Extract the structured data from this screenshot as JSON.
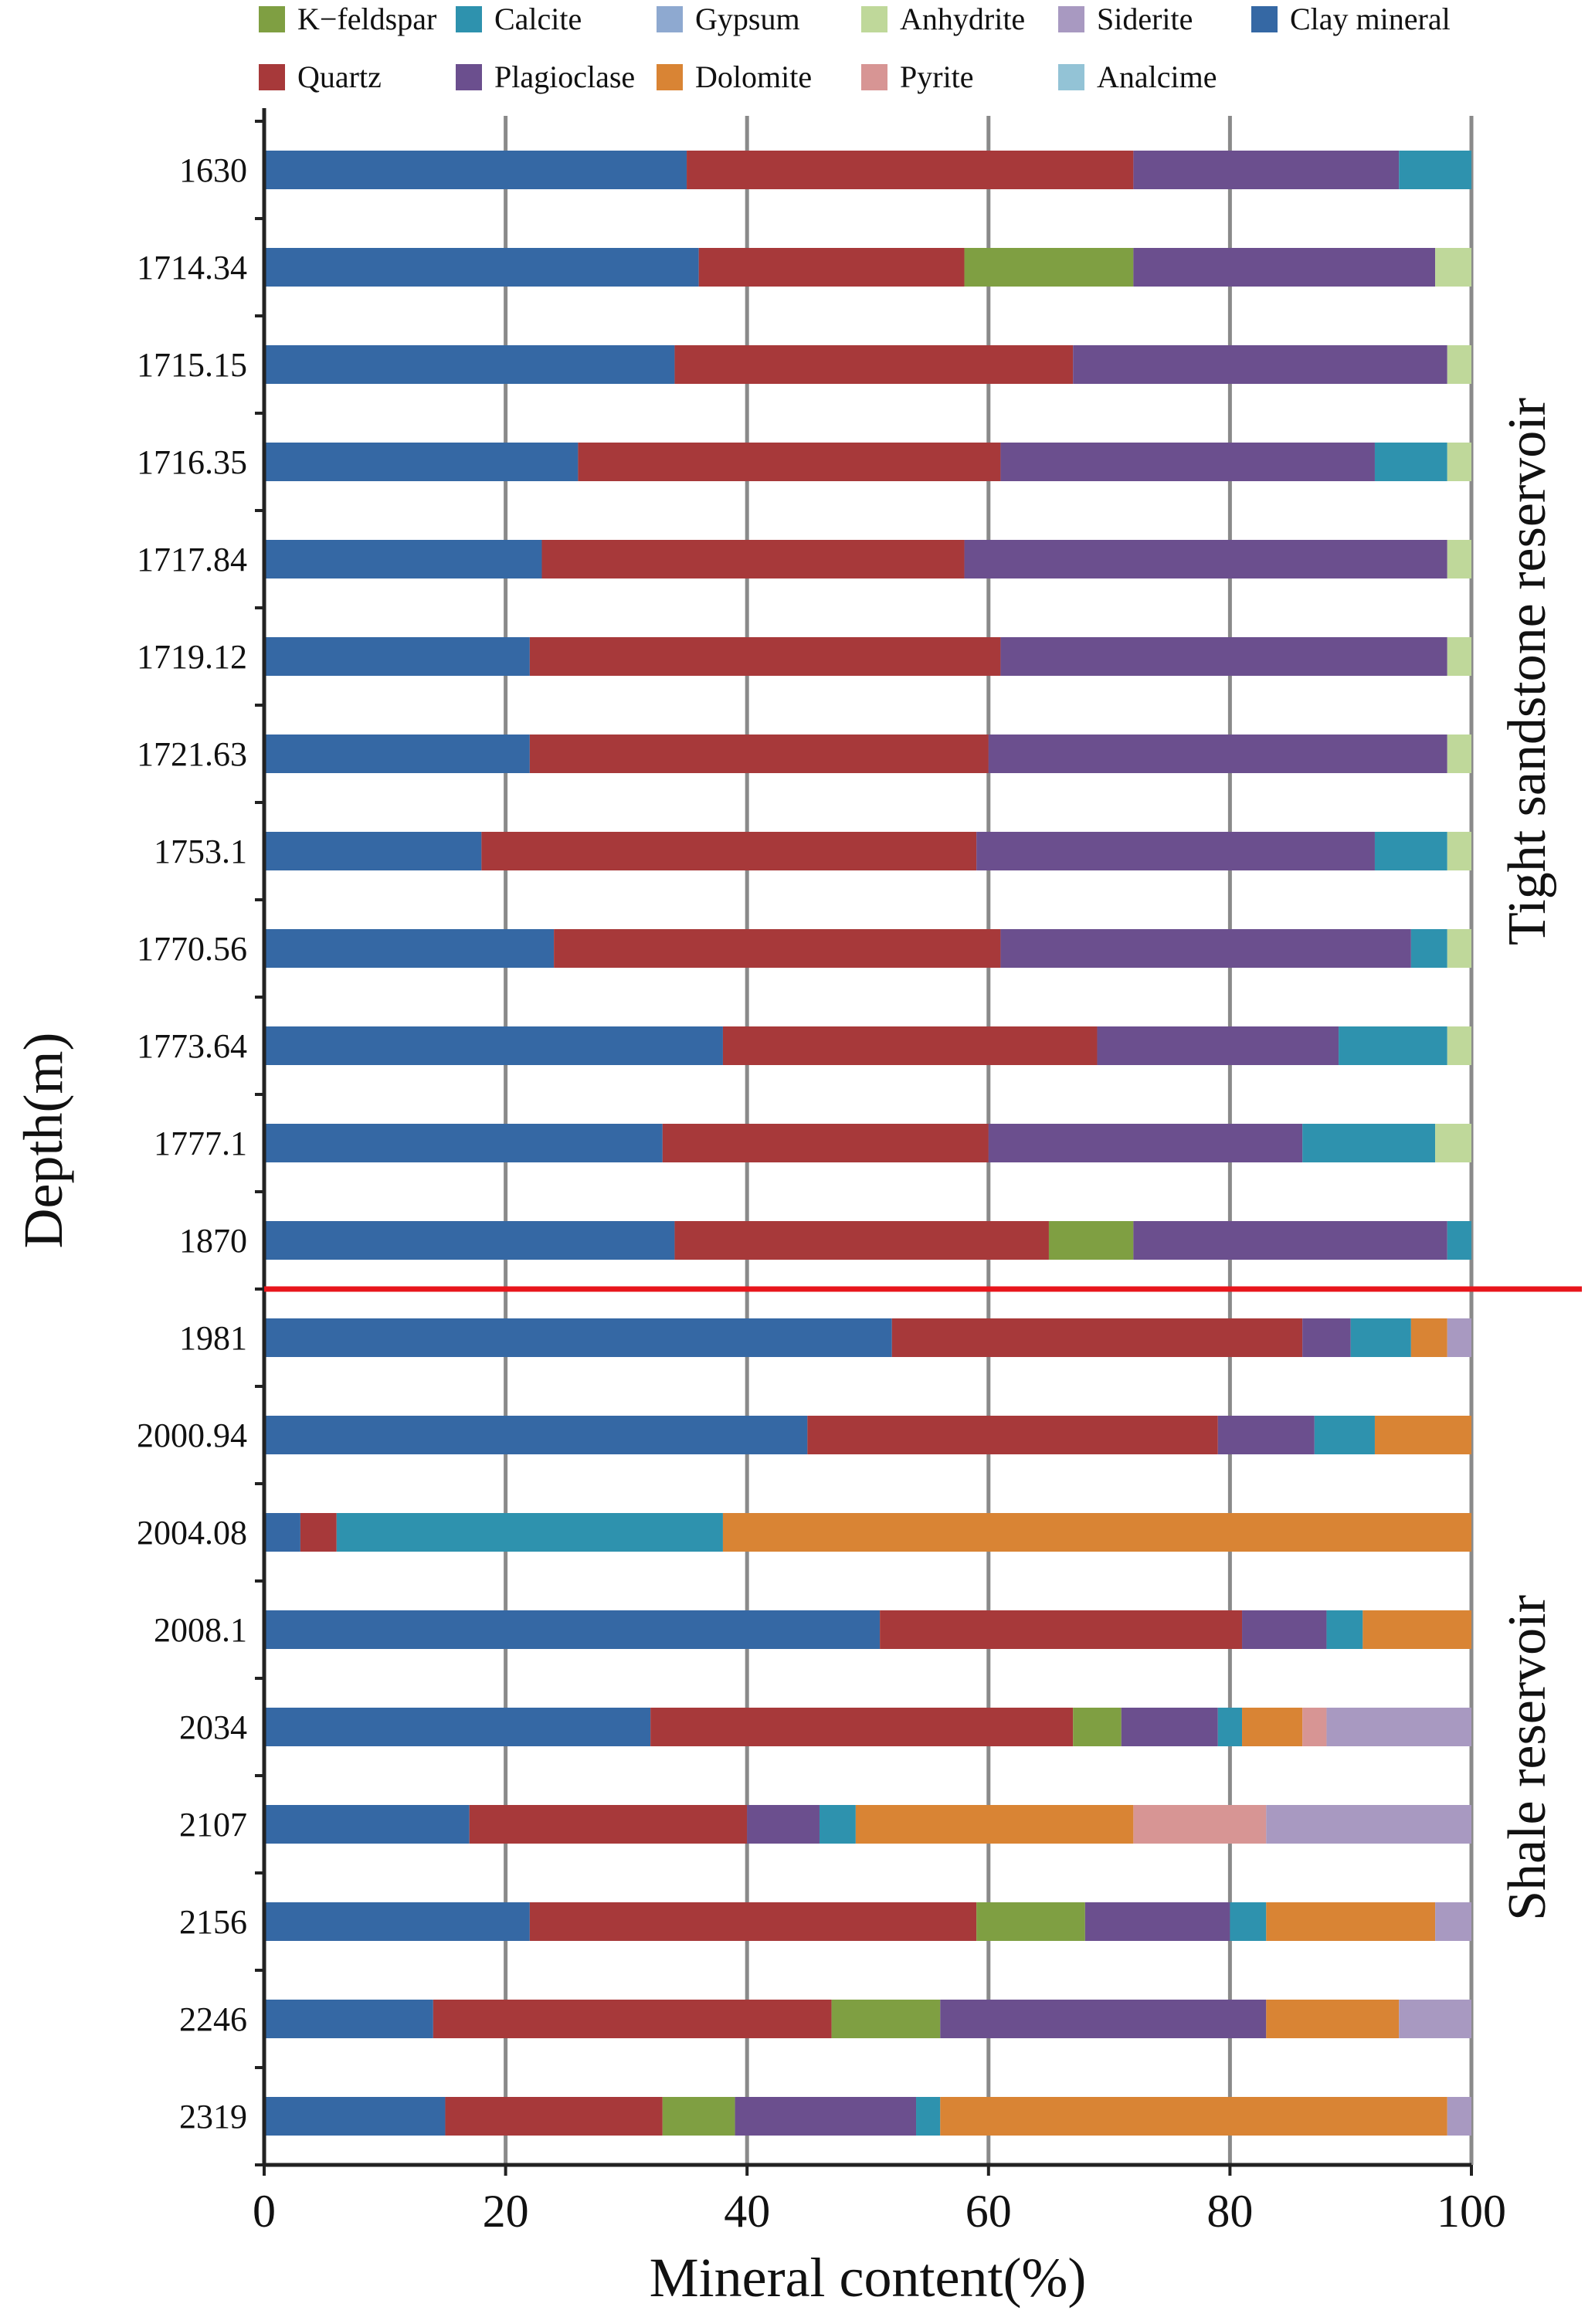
{
  "chart_data": {
    "type": "stacked-bar-horizontal",
    "xlabel": "Mineral content(%)",
    "ylabel": "Depth(m)",
    "xlim": [
      0,
      100
    ],
    "x_ticks": [
      "0",
      "20",
      "40",
      "60",
      "80",
      "100"
    ],
    "grid": true,
    "legend_position": "top",
    "legend": [
      {
        "name": "K−feldspar",
        "color": "#7f9f42"
      },
      {
        "name": "Calcite",
        "color": "#2e92ae"
      },
      {
        "name": "Gypsum",
        "color": "#8ea9d0"
      },
      {
        "name": "Anhydrite",
        "color": "#bfd89a"
      },
      {
        "name": "Siderite",
        "color": "#a899c1"
      },
      {
        "name": "Clay  mineral",
        "color": "#3568a4"
      },
      {
        "name": "Quartz",
        "color": "#a7393a"
      },
      {
        "name": "Plagioclase",
        "color": "#6b4f8e"
      },
      {
        "name": "Dolomite",
        "color": "#d98434"
      },
      {
        "name": "Pyrite",
        "color": "#d79594"
      },
      {
        "name": "Analcime",
        "color": "#93c3d6"
      }
    ],
    "stack_order": [
      "Clay  mineral",
      "Quartz",
      "K−feldspar",
      "Plagioclase",
      "Calcite",
      "Dolomite",
      "Pyrite",
      "Siderite",
      "Anhydrite"
    ],
    "rows": [
      {
        "depth": "1630",
        "values": {
          "Clay  mineral": 35,
          "Quartz": 37,
          "Plagioclase": 22,
          "Calcite": 6
        }
      },
      {
        "depth": "1714.34",
        "values": {
          "Clay  mineral": 36,
          "Quartz": 22,
          "K−feldspar": 14,
          "Plagioclase": 25,
          "Anhydrite": 3
        }
      },
      {
        "depth": "1715.15",
        "values": {
          "Clay  mineral": 34,
          "Quartz": 33,
          "Plagioclase": 31,
          "Anhydrite": 2
        }
      },
      {
        "depth": "1716.35",
        "values": {
          "Clay  mineral": 26,
          "Quartz": 35,
          "Plagioclase": 31,
          "Calcite": 6,
          "Anhydrite": 2
        }
      },
      {
        "depth": "1717.84",
        "values": {
          "Clay  mineral": 23,
          "Quartz": 35,
          "Plagioclase": 40,
          "Anhydrite": 2
        }
      },
      {
        "depth": "1719.12",
        "values": {
          "Clay  mineral": 22,
          "Quartz": 39,
          "Plagioclase": 37,
          "Anhydrite": 2
        }
      },
      {
        "depth": "1721.63",
        "values": {
          "Clay  mineral": 22,
          "Quartz": 38,
          "Plagioclase": 38,
          "Anhydrite": 2
        }
      },
      {
        "depth": "1753.1",
        "values": {
          "Clay  mineral": 18,
          "Quartz": 41,
          "Plagioclase": 33,
          "Calcite": 6,
          "Anhydrite": 2
        }
      },
      {
        "depth": "1770.56",
        "values": {
          "Clay  mineral": 24,
          "Quartz": 37,
          "Plagioclase": 34,
          "Calcite": 3,
          "Anhydrite": 2
        }
      },
      {
        "depth": "1773.64",
        "values": {
          "Clay  mineral": 38,
          "Quartz": 31,
          "Plagioclase": 20,
          "Calcite": 9,
          "Anhydrite": 2
        }
      },
      {
        "depth": "1777.1",
        "values": {
          "Clay  mineral": 33,
          "Quartz": 27,
          "Plagioclase": 26,
          "Calcite": 11,
          "Anhydrite": 3
        }
      },
      {
        "depth": "1870",
        "values": {
          "Clay  mineral": 34,
          "Quartz": 31,
          "K−feldspar": 7,
          "Plagioclase": 26,
          "Calcite": 2
        }
      },
      {
        "depth": "1981",
        "values": {
          "Clay  mineral": 52,
          "Quartz": 34,
          "Plagioclase": 4,
          "Calcite": 5,
          "Dolomite": 3,
          "Siderite": 2
        }
      },
      {
        "depth": "2000.94",
        "values": {
          "Clay  mineral": 45,
          "Quartz": 34,
          "Plagioclase": 8,
          "Calcite": 5,
          "Dolomite": 8
        }
      },
      {
        "depth": "2004.08",
        "values": {
          "Clay  mineral": 3,
          "Quartz": 3,
          "Calcite": 32,
          "Dolomite": 62
        }
      },
      {
        "depth": "2008.1",
        "values": {
          "Clay  mineral": 51,
          "Quartz": 30,
          "Plagioclase": 7,
          "Calcite": 3,
          "Dolomite": 9
        }
      },
      {
        "depth": "2034",
        "values": {
          "Clay  mineral": 32,
          "Quartz": 35,
          "K−feldspar": 4,
          "Plagioclase": 8,
          "Calcite": 2,
          "Dolomite": 5,
          "Pyrite": 2,
          "Siderite": 12
        }
      },
      {
        "depth": "2107",
        "values": {
          "Clay  mineral": 17,
          "Quartz": 23,
          "Plagioclase": 6,
          "Calcite": 3,
          "Dolomite": 23,
          "Pyrite": 11,
          "Siderite": 17
        }
      },
      {
        "depth": "2156",
        "values": {
          "Clay  mineral": 22,
          "Quartz": 37,
          "K−feldspar": 9,
          "Plagioclase": 12,
          "Calcite": 3,
          "Dolomite": 14,
          "Siderite": 3
        }
      },
      {
        "depth": "2246",
        "values": {
          "Clay  mineral": 14,
          "Quartz": 33,
          "K−feldspar": 9,
          "Plagioclase": 27,
          "Dolomite": 11,
          "Siderite": 6
        }
      },
      {
        "depth": "2319",
        "values": {
          "Clay  mineral": 15,
          "Quartz": 18,
          "K−feldspar": 6,
          "Plagioclase": 15,
          "Calcite": 2,
          "Dolomite": 42,
          "Siderite": 2
        }
      }
    ],
    "divider_after_depth": "1870",
    "annotations": {
      "upper": "Tight  sandstone  reservoir",
      "lower": "Shale reservoir"
    }
  }
}
